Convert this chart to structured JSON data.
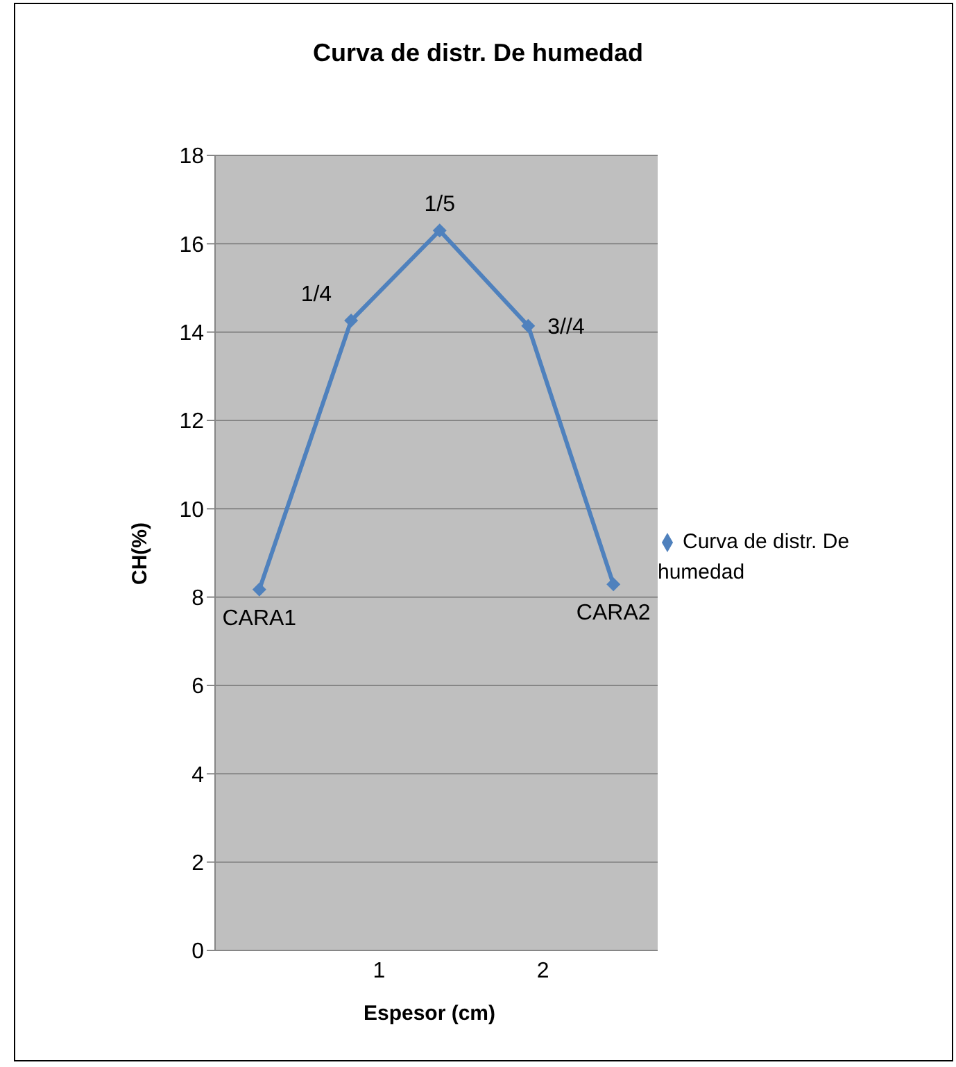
{
  "chart_data": {
    "type": "line",
    "title": "Curva de distr. De humedad",
    "xlabel": "Espesor (cm)",
    "ylabel": "CH(%)",
    "x": [
      0.27,
      0.83,
      1.37,
      1.91,
      2.43
    ],
    "series": [
      {
        "name": "Curva de distr. De humedad",
        "color": "#4f81bd",
        "values": [
          8.17,
          14.26,
          16.3,
          14.14,
          8.29
        ]
      }
    ],
    "xlim": [
      0,
      2.7
    ],
    "xticks": [
      1,
      2
    ],
    "ylim": [
      0,
      18
    ],
    "yticks": [
      0,
      2,
      4,
      6,
      8,
      10,
      12,
      14,
      16,
      18
    ],
    "grid": "y",
    "legend": "right",
    "marker": "diamond",
    "line_style": "solid",
    "annotations": [
      {
        "text": "CARA1",
        "x": 0.27,
        "y": 8.17
      },
      {
        "text": "1/4",
        "x": 0.83,
        "y": 14.26
      },
      {
        "text": "1/5",
        "x": 1.37,
        "y": 16.3
      },
      {
        "text": "3//4",
        "x": 1.91,
        "y": 14.14
      },
      {
        "text": "CARA2",
        "x": 2.43,
        "y": 8.29
      }
    ]
  }
}
